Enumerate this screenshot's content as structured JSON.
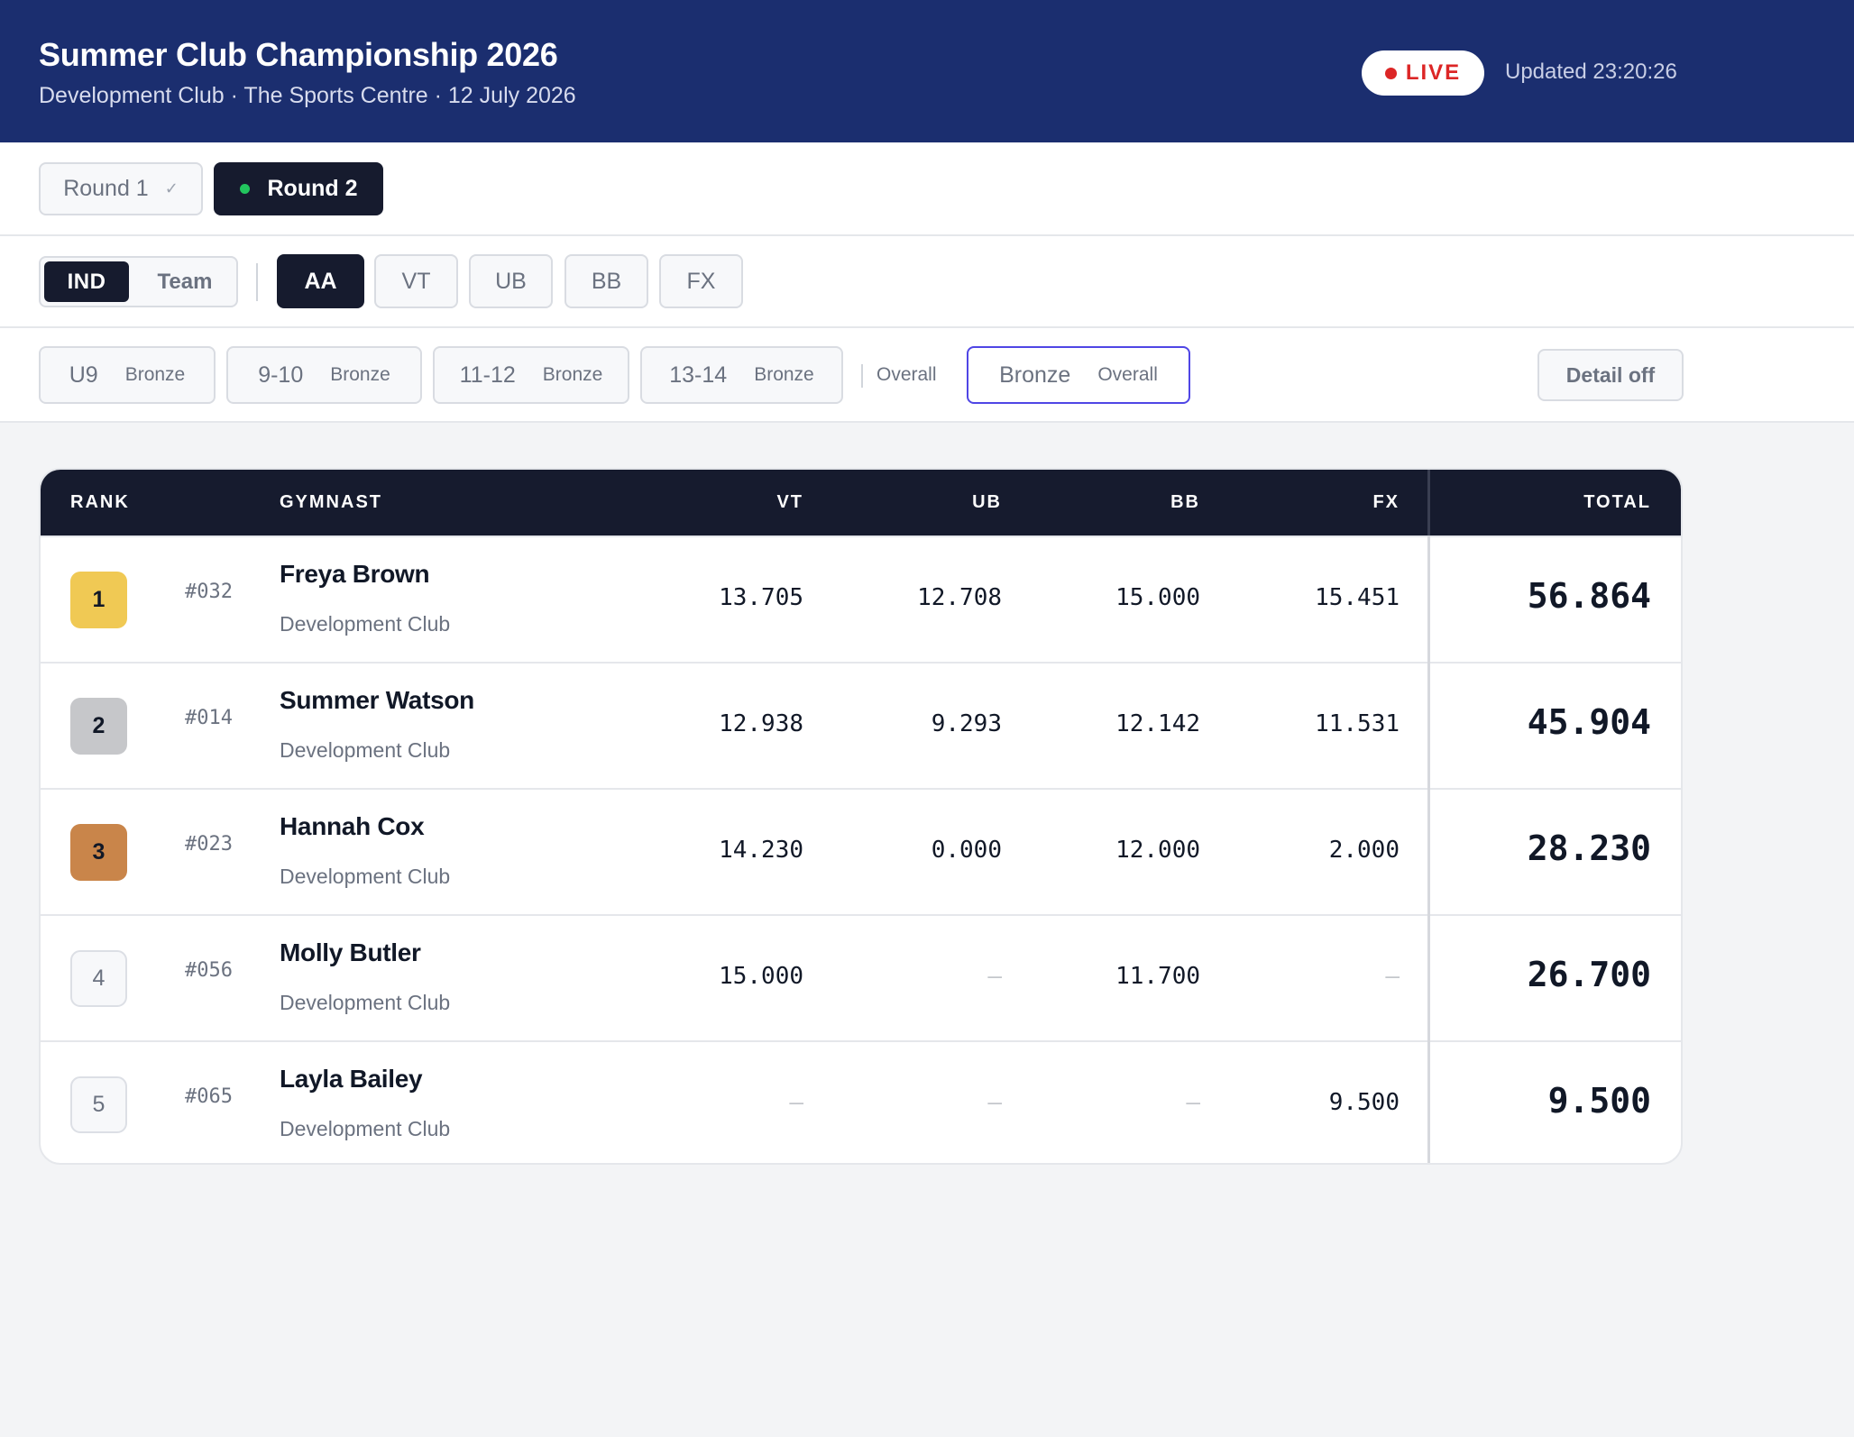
{
  "header": {
    "title": "Summer Club Championship 2026",
    "subtitle": "Development Club · The Sports Centre · 12 July 2026",
    "live_label": "LIVE",
    "updated": "Updated 23:20:26"
  },
  "rounds": [
    {
      "label": "Round 1",
      "state": "completed",
      "check": "✓"
    },
    {
      "label": "Round 2",
      "state": "active"
    }
  ],
  "mode_toggle": {
    "ind": "IND",
    "team": "Team",
    "selected": "IND"
  },
  "events": [
    "AA",
    "VT",
    "UB",
    "BB",
    "FX"
  ],
  "selected_event": "AA",
  "categories": [
    {
      "age": "U9",
      "level": "Bronze"
    },
    {
      "age": "9-10",
      "level": "Bronze"
    },
    {
      "age": "11-12",
      "level": "Bronze"
    },
    {
      "age": "13-14",
      "level": "Bronze"
    }
  ],
  "overall_label": "Overall",
  "overall_category": {
    "level": "Bronze",
    "label": "Overall",
    "selected": true
  },
  "detail_button": "Detail off",
  "table": {
    "columns": {
      "rank": "RANK",
      "gymnast": "GYMNAST",
      "vt": "VT",
      "ub": "UB",
      "bb": "BB",
      "fx": "FX",
      "total": "TOTAL"
    },
    "rows": [
      {
        "rank": "1",
        "bib": "#032",
        "name": "Freya Brown",
        "club": "Development Club",
        "vt": "13.705",
        "ub": "12.708",
        "bb": "15.000",
        "fx": "15.451",
        "total": "56.864"
      },
      {
        "rank": "2",
        "bib": "#014",
        "name": "Summer Watson",
        "club": "Development Club",
        "vt": "12.938",
        "ub": "9.293",
        "bb": "12.142",
        "fx": "11.531",
        "total": "45.904"
      },
      {
        "rank": "3",
        "bib": "#023",
        "name": "Hannah Cox",
        "club": "Development Club",
        "vt": "14.230",
        "ub": "0.000",
        "bb": "12.000",
        "fx": "2.000",
        "total": "28.230"
      },
      {
        "rank": "4",
        "bib": "#056",
        "name": "Molly Butler",
        "club": "Development Club",
        "vt": "15.000",
        "ub": "—",
        "bb": "11.700",
        "fx": "—",
        "total": "26.700"
      },
      {
        "rank": "5",
        "bib": "#065",
        "name": "Layla Bailey",
        "club": "Development Club",
        "vt": "—",
        "ub": "—",
        "bb": "—",
        "fx": "9.500",
        "total": "9.500"
      }
    ]
  },
  "colors": {
    "header_bg": "#1b2e6f",
    "dark": "#161b2e",
    "live": "#dc2626",
    "active_dot": "#22c55e",
    "selected_outline": "#4f46e5",
    "gold": "#f0c954",
    "silver": "#c6c7ca",
    "bronze": "#c9854a"
  }
}
